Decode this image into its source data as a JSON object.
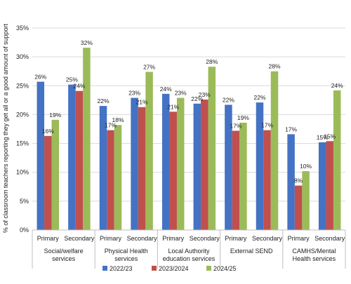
{
  "chart_data": {
    "type": "bar",
    "title": "",
    "ylabel": "% of classroom teachers reporting they get all or a good amount of support",
    "xlabel": "",
    "ylim": [
      0,
      35
    ],
    "yticks": [
      "0%",
      "5%",
      "10%",
      "15%",
      "20%",
      "25%",
      "30%",
      "35%"
    ],
    "grid": true,
    "legend_position": "bottom",
    "groups": [
      {
        "label": "Social/welfare services",
        "label_lines": [
          "Social/welfare",
          "services"
        ],
        "subcategories": [
          "Primary",
          "Secondary"
        ]
      },
      {
        "label": "Physical Health services",
        "label_lines": [
          "Physical Health",
          "services"
        ],
        "subcategories": [
          "Primary",
          "Secondary"
        ]
      },
      {
        "label": "Local Authority education services",
        "label_lines": [
          "Local Authority",
          "education services"
        ],
        "subcategories": [
          "Primary",
          "Secondary"
        ]
      },
      {
        "label": "External SEND",
        "label_lines": [
          "External SEND"
        ],
        "subcategories": [
          "Primary",
          "Secondary"
        ]
      },
      {
        "label": "CAMHS/Mental Health services",
        "label_lines": [
          "CAMHS/Mental",
          "Health services"
        ],
        "subcategories": [
          "Primary",
          "Secondary"
        ]
      }
    ],
    "series": [
      {
        "name": "2022/23",
        "color": "#4472C4",
        "values": [
          25.7,
          25.2,
          21.5,
          22.9,
          23.6,
          21.9,
          21.7,
          22.1,
          16.6,
          15.2
        ],
        "labels": [
          "26%",
          "25%",
          "22%",
          "23%",
          "24%",
          "22%",
          "22%",
          "22%",
          "17%",
          "15%"
        ]
      },
      {
        "name": "2023/2024",
        "color": "#C0504D",
        "values": [
          16.3,
          24.1,
          17.3,
          21.3,
          20.5,
          22.6,
          17.2,
          17.3,
          7.7,
          15.4
        ],
        "labels": [
          "16%",
          "24%",
          "17%",
          "21%",
          "21%",
          "23%",
          "17%",
          "17%",
          "8%",
          "15%"
        ]
      },
      {
        "name": "2024/25",
        "color": "#9BBB59",
        "values": [
          19.1,
          31.6,
          18.2,
          27.4,
          22.9,
          28.3,
          18.6,
          27.5,
          10.2,
          24.2
        ],
        "labels": [
          "19%",
          "32%",
          "18%",
          "27%",
          "23%",
          "28%",
          "19%",
          "28%",
          "10%",
          "24%"
        ]
      }
    ]
  }
}
